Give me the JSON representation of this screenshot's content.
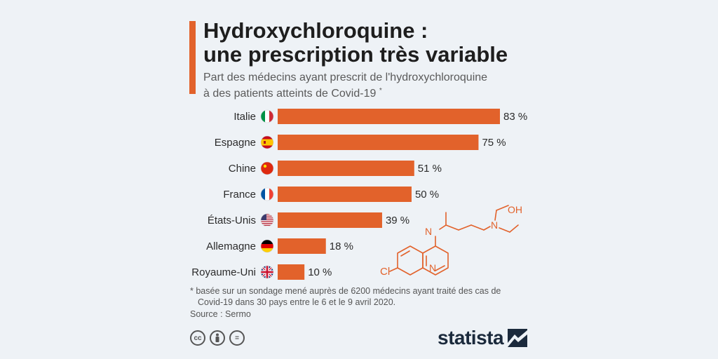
{
  "header": {
    "title_line1": "Hydroxychloroquine :",
    "title_line2": "une prescription très variable",
    "subtitle_line1": "Part des médecins ayant prescrit de l'hydroxychloroquine",
    "subtitle_line2": "à des patients atteints de Covid-19",
    "subtitle_mark": "*"
  },
  "colors": {
    "bar": "#e2622b",
    "accent": "#e2622b",
    "background": "#eef2f6"
  },
  "chart_data": {
    "type": "bar",
    "orientation": "horizontal",
    "unit": "%",
    "categories": [
      "Italie",
      "Espagne",
      "Chine",
      "France",
      "États-Unis",
      "Allemagne",
      "Royaume-Uni"
    ],
    "values": [
      83,
      75,
      51,
      50,
      39,
      18,
      10
    ],
    "value_labels": [
      "83 %",
      "75 %",
      "51 %",
      "50 %",
      "39 %",
      "18 %",
      "10 %"
    ],
    "flag_icons": [
      "italy-flag-icon",
      "spain-flag-icon",
      "china-flag-icon",
      "france-flag-icon",
      "usa-flag-icon",
      "germany-flag-icon",
      "uk-flag-icon"
    ],
    "xlim": [
      0,
      100
    ],
    "grid": false,
    "legend": "none"
  },
  "molecule": {
    "labels": [
      "OH",
      "N",
      "N",
      "N",
      "Cl"
    ],
    "icon": "hydroxychloroquine-structure-icon"
  },
  "footer": {
    "footnote_line1": "* basée sur un sondage mené auprès de 6200 médecins ayant traité des cas de",
    "footnote_line2": "Covid-19 dans 30 pays entre le 6 et le 9 avril 2020.",
    "source": "Source : Sermo",
    "license_icons": [
      "cc",
      "by",
      "="
    ],
    "brand": "statista"
  }
}
